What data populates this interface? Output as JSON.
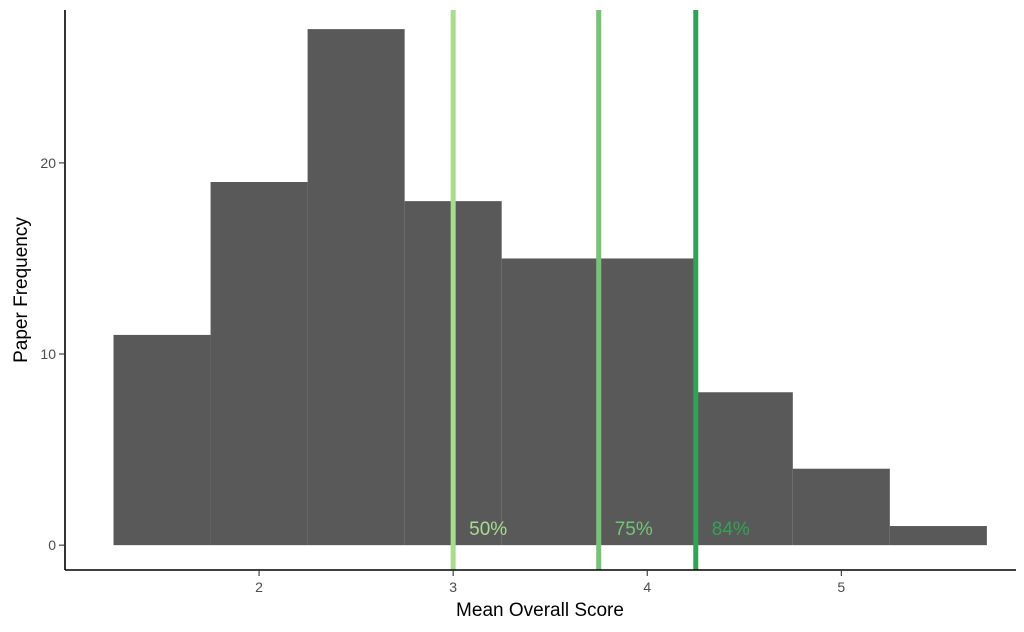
{
  "chart_data": {
    "type": "bar",
    "xlabel": "Mean Overall Score",
    "ylabel": "Paper Frequency",
    "xlim": [
      1.0,
      5.9
    ],
    "ylim": [
      -1.3,
      28
    ],
    "x_ticks": [
      2,
      3,
      4,
      5
    ],
    "y_ticks": [
      0,
      10,
      20
    ],
    "grid": false,
    "bar_color": "#595959",
    "bins": [
      {
        "x0": 1.25,
        "x1": 1.75,
        "count": 11
      },
      {
        "x0": 1.75,
        "x1": 2.25,
        "count": 19
      },
      {
        "x0": 2.25,
        "x1": 2.75,
        "count": 27
      },
      {
        "x0": 2.75,
        "x1": 3.25,
        "count": 18
      },
      {
        "x0": 3.25,
        "x1": 3.75,
        "count": 15
      },
      {
        "x0": 3.75,
        "x1": 4.25,
        "count": 15
      },
      {
        "x0": 4.25,
        "x1": 4.75,
        "count": 8
      },
      {
        "x0": 4.75,
        "x1": 5.25,
        "count": 4
      },
      {
        "x0": 5.25,
        "x1": 5.75,
        "count": 1
      }
    ],
    "reference_lines": [
      {
        "x": 3.0,
        "label": "50%",
        "color": "#a8dc8f"
      },
      {
        "x": 3.75,
        "label": "75%",
        "color": "#74c476"
      },
      {
        "x": 4.25,
        "label": "84%",
        "color": "#31a354"
      }
    ]
  }
}
